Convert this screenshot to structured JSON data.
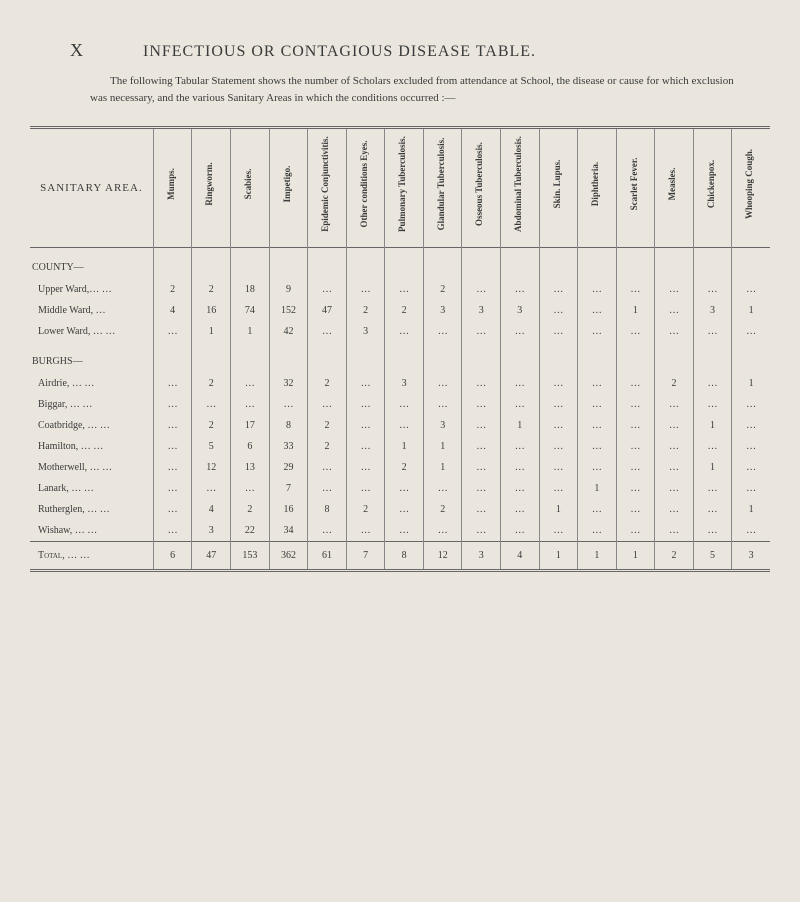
{
  "section_letter": "X",
  "title": "INFECTIOUS OR CONTAGIOUS DISEASE TABLE.",
  "intro": "The following Tabular Statement shows the number of Scholars excluded from attendance at School, the disease or cause for which exclusion was necessary, and the various Sanitary Areas in which the conditions occurred :—",
  "area_header": "SANITARY AREA.",
  "columns": [
    "Mumps.",
    "Ringworm.",
    "Scabies.",
    "Impetigo.",
    "Epidemic Conjunctivitis.",
    "Other conditions Eyes.",
    "Pulmonary Tuberculosis.",
    "Glandular Tuberculosis.",
    "Osseous Tuberculosis.",
    "Abdominal Tuberculosis.",
    "Skin. Lupus.",
    "Diphtheria.",
    "Scarlet Fever.",
    "Measles.",
    "Chickenpox.",
    "Whooping Cough."
  ],
  "groups": [
    {
      "label": "COUNTY—",
      "rows": [
        {
          "area": "Upper Ward,… …",
          "cells": [
            "2",
            "2",
            "18",
            "9",
            "…",
            "…",
            "…",
            "2",
            "…",
            "…",
            "…",
            "…",
            "…",
            "…",
            "…",
            "…"
          ]
        },
        {
          "area": "Middle Ward, …",
          "cells": [
            "4",
            "16",
            "74",
            "152",
            "47",
            "2",
            "2",
            "3",
            "3",
            "3",
            "…",
            "…",
            "1",
            "…",
            "3",
            "1"
          ]
        },
        {
          "area": "Lower Ward, … …",
          "cells": [
            "…",
            "1",
            "1",
            "42",
            "…",
            "3",
            "…",
            "…",
            "…",
            "…",
            "…",
            "…",
            "…",
            "…",
            "…",
            "…"
          ]
        }
      ]
    },
    {
      "label": "BURGHS—",
      "rows": [
        {
          "area": "Airdrie, … …",
          "cells": [
            "…",
            "2",
            "…",
            "32",
            "2",
            "…",
            "3",
            "…",
            "…",
            "…",
            "…",
            "…",
            "…",
            "2",
            "…",
            "1"
          ]
        },
        {
          "area": "Biggar, … …",
          "cells": [
            "…",
            "…",
            "…",
            "…",
            "…",
            "…",
            "…",
            "…",
            "…",
            "…",
            "…",
            "…",
            "…",
            "…",
            "…",
            "…"
          ]
        },
        {
          "area": "Coatbridge, … …",
          "cells": [
            "…",
            "2",
            "17",
            "8",
            "2",
            "…",
            "…",
            "3",
            "…",
            "1",
            "…",
            "…",
            "…",
            "…",
            "1",
            "…"
          ]
        },
        {
          "area": "Hamilton, … …",
          "cells": [
            "…",
            "5",
            "6",
            "33",
            "2",
            "…",
            "1",
            "1",
            "…",
            "…",
            "…",
            "…",
            "…",
            "…",
            "…",
            "…"
          ]
        },
        {
          "area": "Motherwell, … …",
          "cells": [
            "…",
            "12",
            "13",
            "29",
            "…",
            "…",
            "2",
            "1",
            "…",
            "…",
            "…",
            "…",
            "…",
            "…",
            "1",
            "…"
          ]
        },
        {
          "area": "Lanark, … …",
          "cells": [
            "…",
            "…",
            "…",
            "7",
            "…",
            "…",
            "…",
            "…",
            "…",
            "…",
            "…",
            "1",
            "…",
            "…",
            "…",
            "…"
          ]
        },
        {
          "area": "Rutherglen, … …",
          "cells": [
            "…",
            "4",
            "2",
            "16",
            "8",
            "2",
            "…",
            "2",
            "…",
            "…",
            "1",
            "…",
            "…",
            "…",
            "…",
            "1"
          ]
        },
        {
          "area": "Wishaw, … …",
          "cells": [
            "…",
            "3",
            "22",
            "34",
            "…",
            "…",
            "…",
            "…",
            "…",
            "…",
            "…",
            "…",
            "…",
            "…",
            "…",
            "…"
          ]
        }
      ]
    }
  ],
  "total": {
    "label": "Total, … …",
    "cells": [
      "6",
      "47",
      "153",
      "362",
      "61",
      "7",
      "8",
      "12",
      "3",
      "4",
      "1",
      "1",
      "1",
      "2",
      "5",
      "3"
    ]
  }
}
